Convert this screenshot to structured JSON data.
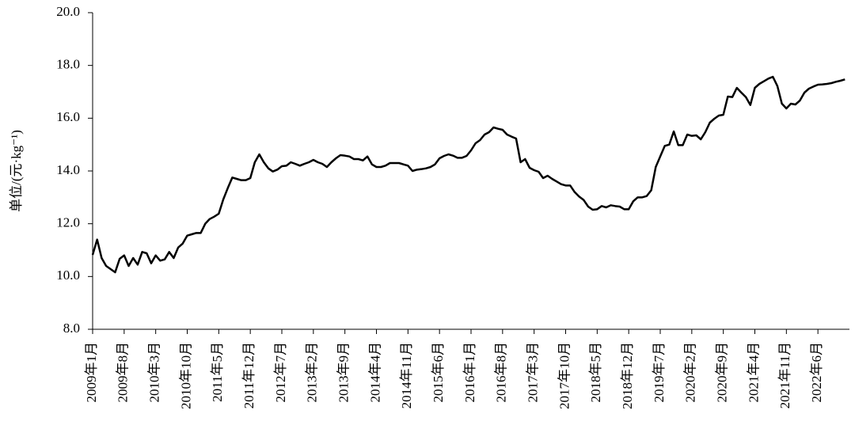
{
  "chart_data": {
    "type": "line",
    "y_label": "单位/(元·kg⁻¹)",
    "categories": [
      "2009年1月",
      null,
      null,
      null,
      null,
      null,
      null,
      "2009年8月",
      null,
      null,
      null,
      null,
      null,
      null,
      "2010年3月",
      null,
      null,
      null,
      null,
      null,
      null,
      "2010年10月",
      null,
      null,
      null,
      null,
      null,
      null,
      "2011年5月",
      null,
      null,
      null,
      null,
      null,
      null,
      "2011年12月",
      null,
      null,
      null,
      null,
      null,
      null,
      "2012年7月",
      null,
      null,
      null,
      null,
      null,
      null,
      "2013年2月",
      null,
      null,
      null,
      null,
      null,
      null,
      "2013年9月",
      null,
      null,
      null,
      null,
      null,
      null,
      "2014年4月",
      null,
      null,
      null,
      null,
      null,
      null,
      "2014年11月",
      null,
      null,
      null,
      null,
      null,
      null,
      "2015年6月",
      null,
      null,
      null,
      null,
      null,
      null,
      "2016年1月",
      null,
      null,
      null,
      null,
      null,
      null,
      "2016年8月",
      null,
      null,
      null,
      null,
      null,
      null,
      "2017年3月",
      null,
      null,
      null,
      null,
      null,
      null,
      "2017年10月",
      null,
      null,
      null,
      null,
      null,
      null,
      "2018年5月",
      null,
      null,
      null,
      null,
      null,
      null,
      "2018年12月",
      null,
      null,
      null,
      null,
      null,
      null,
      "2019年7月",
      null,
      null,
      null,
      null,
      null,
      null,
      "2020年2月",
      null,
      null,
      null,
      null,
      null,
      null,
      "2020年9月",
      null,
      null,
      null,
      null,
      null,
      null,
      "2021年4月",
      null,
      null,
      null,
      null,
      null,
      null,
      "2021年11月",
      null,
      null,
      null,
      null,
      null,
      null,
      "2022年6月",
      null,
      null,
      null,
      null,
      null,
      null
    ],
    "values": [
      10.82,
      11.4,
      10.7,
      10.4,
      10.28,
      10.16,
      10.67,
      10.8,
      10.4,
      10.7,
      10.45,
      10.93,
      10.88,
      10.5,
      10.8,
      10.6,
      10.65,
      10.93,
      10.7,
      11.1,
      11.25,
      11.55,
      11.6,
      11.65,
      11.65,
      12.0,
      12.18,
      12.27,
      12.38,
      12.92,
      13.35,
      13.75,
      13.7,
      13.65,
      13.65,
      13.73,
      14.33,
      14.63,
      14.33,
      14.1,
      13.98,
      14.05,
      14.18,
      14.2,
      14.33,
      14.27,
      14.2,
      14.27,
      14.33,
      14.42,
      14.33,
      14.27,
      14.15,
      14.33,
      14.48,
      14.6,
      14.58,
      14.55,
      14.45,
      14.45,
      14.4,
      14.55,
      14.25,
      14.15,
      14.15,
      14.2,
      14.3,
      14.3,
      14.3,
      14.25,
      14.2,
      14.0,
      14.05,
      14.07,
      14.1,
      14.15,
      14.25,
      14.48,
      14.57,
      14.63,
      14.58,
      14.5,
      14.5,
      14.57,
      14.78,
      15.05,
      15.17,
      15.38,
      15.47,
      15.65,
      15.6,
      15.56,
      15.38,
      15.3,
      15.23,
      14.33,
      14.45,
      14.12,
      14.03,
      13.97,
      13.73,
      13.82,
      13.7,
      13.6,
      13.5,
      13.45,
      13.45,
      13.2,
      13.03,
      12.9,
      12.65,
      12.53,
      12.55,
      12.67,
      12.62,
      12.7,
      12.67,
      12.65,
      12.55,
      12.55,
      12.85,
      13.0,
      13.0,
      13.05,
      13.27,
      14.15,
      14.55,
      14.95,
      15.0,
      15.5,
      14.98,
      14.98,
      15.38,
      15.33,
      15.35,
      15.2,
      15.47,
      15.83,
      15.98,
      16.1,
      16.13,
      16.82,
      16.8,
      17.15,
      16.97,
      16.8,
      16.5,
      17.15,
      17.3,
      17.4,
      17.5,
      17.57,
      17.22,
      16.55,
      16.37,
      16.55,
      16.52,
      16.67,
      16.97,
      17.12,
      17.2,
      17.27,
      17.28,
      17.3,
      17.33,
      17.38,
      17.42,
      17.47
    ],
    "color": "#000000",
    "ylim": [
      8,
      20
    ],
    "yticks": [
      {
        "value": 8,
        "label": "8.0"
      },
      {
        "value": 10,
        "label": "10.0"
      },
      {
        "value": 12,
        "label": "12.0"
      },
      {
        "value": 14,
        "label": "14.0"
      },
      {
        "value": 16,
        "label": "16.0"
      },
      {
        "value": 18,
        "label": "18.0"
      },
      {
        "value": 20,
        "label": "20.0"
      }
    ],
    "grid": false
  }
}
